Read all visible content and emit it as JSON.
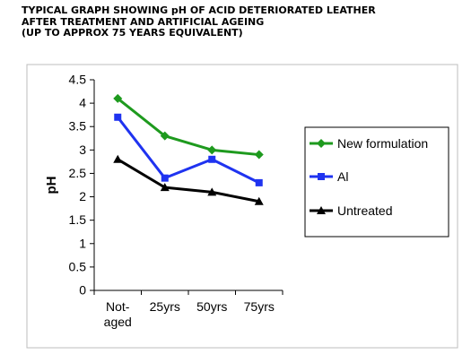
{
  "heading": {
    "lines": [
      "TYPICAL GRAPH SHOWING pH OF ACID DETERIORATED LEATHER",
      "AFTER TREATMENT AND ARTIFICIAL AGEING",
      "(UP TO APPROX 75 YEARS EQUIVALENT)"
    ]
  },
  "chart_data": {
    "type": "line",
    "categories": [
      [
        "Not-",
        "aged"
      ],
      [
        "25yrs"
      ],
      [
        "50yrs"
      ],
      [
        "75yrs"
      ]
    ],
    "ylabel": "pH",
    "xlabel": "",
    "ylim": [
      0,
      4.5
    ],
    "yticks": [
      "0",
      "0.5",
      "1",
      "1.5",
      "2",
      "2.5",
      "3",
      "3.5",
      "4",
      "4.5"
    ],
    "grid": false,
    "legend_position": "right",
    "series": [
      {
        "name": "New formulation",
        "values": [
          4.1,
          3.3,
          3.0,
          2.9
        ],
        "color": "#1e9a1e",
        "marker": "diamond"
      },
      {
        "name": "Al",
        "values": [
          3.7,
          2.4,
          2.8,
          2.3
        ],
        "color": "#1f33f0",
        "marker": "square"
      },
      {
        "name": "Untreated",
        "values": [
          2.8,
          2.2,
          2.1,
          1.9
        ],
        "color": "#000000",
        "marker": "triangle"
      }
    ]
  }
}
